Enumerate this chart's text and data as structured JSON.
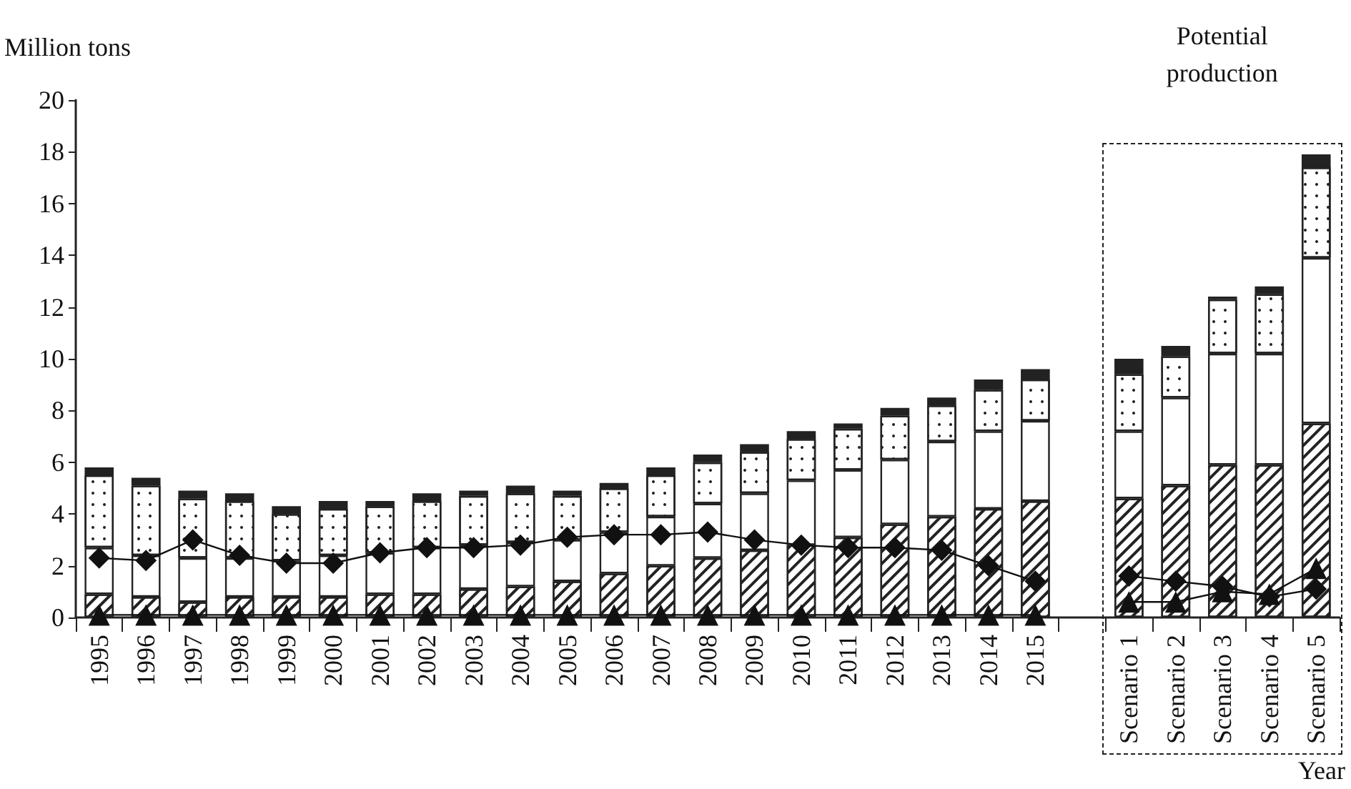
{
  "chart_data": {
    "type": "bar",
    "stacked": true,
    "categories": [
      "1995",
      "1996",
      "1997",
      "1998",
      "1999",
      "2000",
      "2001",
      "2002",
      "2003",
      "2004",
      "2005",
      "2006",
      "2007",
      "2008",
      "2009",
      "2010",
      "2011",
      "2012",
      "2013",
      "2014",
      "2015",
      null,
      "Scenario 1",
      "Scenario 2",
      "Scenario 3",
      "Scenario 4",
      "Scenario 5"
    ],
    "ylabel": "Million tons",
    "xlabel": "Year",
    "annotations": [
      "Potential production"
    ],
    "ylim": [
      0,
      20
    ],
    "yticks": [
      0,
      2,
      4,
      6,
      8,
      10,
      12,
      14,
      16,
      18,
      20
    ],
    "grid": false,
    "series": [
      {
        "color": "#ffffff",
        "values": [
          0.9,
          0.8,
          0.6,
          0.8,
          0.8,
          0.8,
          0.9,
          0.9,
          1.1,
          1.2,
          1.4,
          1.7,
          2.0,
          2.3,
          2.6,
          2.8,
          3.1,
          3.6,
          3.9,
          4.2,
          4.5,
          null,
          4.6,
          5.1,
          5.9,
          5.9,
          7.5
        ]
      },
      {
        "color": "#ffffff",
        "values": [
          1.8,
          1.6,
          1.7,
          1.5,
          1.4,
          1.6,
          1.6,
          1.8,
          1.7,
          1.7,
          1.6,
          1.6,
          1.9,
          2.1,
          2.2,
          2.5,
          2.6,
          2.5,
          2.9,
          3.0,
          3.1,
          null,
          2.6,
          3.4,
          4.3,
          4.3,
          6.4
        ]
      },
      {
        "color": "#ffffff",
        "values": [
          2.8,
          2.7,
          2.3,
          2.2,
          1.8,
          1.8,
          1.8,
          1.8,
          1.9,
          1.9,
          1.7,
          1.7,
          1.6,
          1.6,
          1.6,
          1.6,
          1.6,
          1.7,
          1.4,
          1.6,
          1.6,
          null,
          2.2,
          1.6,
          2.1,
          2.3,
          3.5
        ]
      },
      {
        "color": "#222222",
        "values": [
          0.3,
          0.3,
          0.3,
          0.3,
          0.3,
          0.3,
          0.2,
          0.3,
          0.2,
          0.3,
          0.2,
          0.2,
          0.3,
          0.3,
          0.3,
          0.3,
          0.2,
          0.3,
          0.3,
          0.4,
          0.4,
          null,
          0.6,
          0.4,
          0.1,
          0.3,
          0.5
        ]
      },
      {
        "type": "line",
        "marker": "diamond",
        "color": "#111111",
        "values": [
          2.3,
          2.2,
          3.0,
          2.4,
          2.1,
          2.1,
          2.5,
          2.7,
          2.7,
          2.8,
          3.1,
          3.2,
          3.2,
          3.3,
          3.0,
          2.8,
          2.7,
          2.7,
          2.6,
          2.0,
          1.4,
          null,
          1.6,
          1.4,
          1.2,
          0.8,
          1.1
        ]
      },
      {
        "type": "line",
        "marker": "triangle",
        "color": "#111111",
        "values": [
          0.1,
          0.1,
          0.1,
          0.1,
          0.1,
          0.1,
          0.1,
          0.1,
          0.1,
          0.1,
          0.1,
          0.1,
          0.1,
          0.1,
          0.1,
          0.1,
          0.1,
          0.1,
          0.1,
          0.1,
          0.1,
          null,
          0.6,
          0.6,
          1.0,
          0.9,
          1.9
        ]
      }
    ]
  }
}
